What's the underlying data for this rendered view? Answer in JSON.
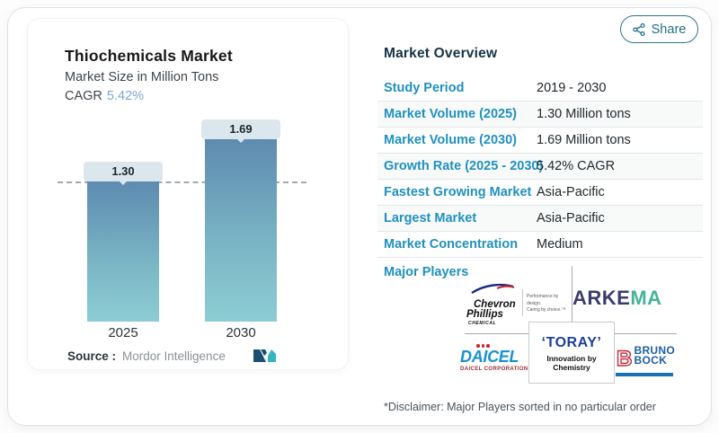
{
  "colors": {
    "accent_blue": "#1f90c0",
    "heading_navy": "#163247",
    "cagr_blue": "#7aa7cf",
    "bar_gradient_top": "#5e8bb0",
    "bar_gradient_bottom": "#8ccdd3",
    "pill_bg": "#dbe7ec",
    "share_teal": "#256f8a"
  },
  "share_button": {
    "label": "Share"
  },
  "chart_panel": {
    "title": "Thiochemicals Market",
    "subtitle": "Market Size in Million Tons",
    "cagr_label": "CAGR",
    "cagr_value": "5.42%",
    "source_label": "Source :",
    "source_value": "Mordor Intelligence"
  },
  "chart_data": {
    "type": "bar",
    "title": "Thiochemicals Market",
    "subtitle": "Market Size in Million Tons",
    "ylabel": "Market Size in Million Tons",
    "categories": [
      "2025",
      "2030"
    ],
    "values": [
      1.3,
      1.69
    ],
    "value_labels": [
      "1.30",
      "1.69"
    ],
    "cagr": "5.42%",
    "baseline_marker": 1.3,
    "grid": false,
    "legend": false
  },
  "overview": {
    "heading": "Market Overview",
    "rows": [
      {
        "label": "Study Period",
        "value": "2019 - 2030"
      },
      {
        "label": "Market Volume (2025)",
        "value": "1.30 Million tons"
      },
      {
        "label": "Market Volume (2030)",
        "value": "1.69 Million tons"
      },
      {
        "label": "Growth Rate (2025 - 2030)",
        "value": "5.42% CAGR"
      },
      {
        "label": "Fastest Growing Market",
        "value": "Asia-Pacific"
      },
      {
        "label": "Largest Market",
        "value": "Asia-Pacific"
      },
      {
        "label": "Market Concentration",
        "value": "Medium"
      }
    ],
    "major_players_label": "Major Players",
    "disclaimer": "*Disclaimer: Major Players sorted in no particular order"
  },
  "players": {
    "chevron": {
      "line1": "Chevron",
      "line2": "Phillips",
      "line3": "CHEMICAL",
      "tagline1": "Performance by design.",
      "tagline2": "Caring by choice.™"
    },
    "arkema": {
      "part1": "ARKE",
      "part2": "MA"
    },
    "toray": {
      "name": "‘TORAY’",
      "tagline": "Innovation by Chemistry"
    },
    "daicel": {
      "name": "DAICEL",
      "sub": "DAICEL CORPORATION"
    },
    "brunobock": {
      "letter": "B",
      "line1": "BRUNO",
      "line2": "BOCK"
    }
  }
}
